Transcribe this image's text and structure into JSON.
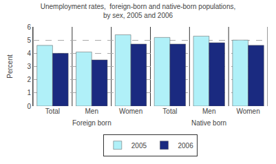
{
  "chart_data": {
    "type": "bar",
    "title": "Unemployment rates,  foreign-born and native-born populations,\nby sex, 2005 and 2006",
    "ylabel": "Percent",
    "categories": [
      "Total",
      "Men",
      "Women",
      "Total",
      "Men",
      "Women"
    ],
    "annotations": [
      {
        "text": "Foreign born",
        "x": 1
      },
      {
        "text": "Native born",
        "x": 4
      }
    ],
    "series": [
      {
        "name": "2005",
        "color": "#b0f0f8",
        "values": [
          4.6,
          4.1,
          5.4,
          5.2,
          5.3,
          5.0
        ]
      },
      {
        "name": "2006",
        "color": "#1a2a80",
        "values": [
          4.0,
          3.5,
          4.7,
          4.7,
          4.8,
          4.6
        ]
      }
    ],
    "ylim": [
      0,
      6
    ],
    "yticks": [
      0,
      1,
      2,
      3,
      4,
      5,
      6
    ],
    "grid": true,
    "legend": "bottom"
  }
}
